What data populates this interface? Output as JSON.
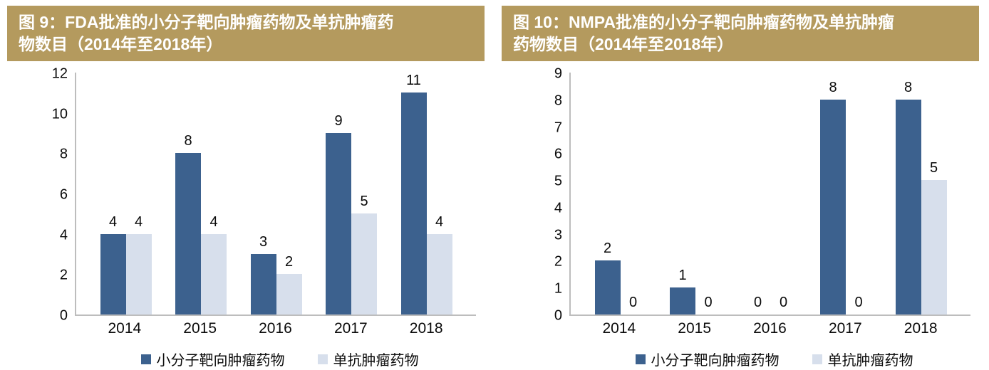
{
  "colors": {
    "header_bg": "#b49a5e",
    "header_text": "#ffffff",
    "axis": "#bdbdbd",
    "label_text": "#0a0a0a",
    "series_dark": "#3c618e",
    "series_light": "#d7dfec"
  },
  "chart_data": [
    {
      "type": "bar",
      "title": "图 9：FDA批准的小分子靶向肿瘤药物及单抗肿瘤药物数目（2014年至2018年）",
      "title_lines": [
        "图 9：FDA批准的小分子靶向肿瘤药物及单抗肿瘤药",
        "物数目（2014年至2018年）"
      ],
      "categories": [
        "2014",
        "2015",
        "2016",
        "2017",
        "2018"
      ],
      "series": [
        {
          "name": "小分子靶向肿瘤药物",
          "color": "#3c618e",
          "values": [
            4,
            8,
            3,
            9,
            11
          ]
        },
        {
          "name": "单抗肿瘤药物",
          "color": "#d7dfec",
          "values": [
            4,
            4,
            2,
            5,
            4
          ]
        }
      ],
      "ylim": [
        0,
        12
      ],
      "ytick_step": 2,
      "grid": false,
      "data_labels": true,
      "legend_position": "bottom"
    },
    {
      "type": "bar",
      "title": "图 10：NMPA批准的小分子靶向肿瘤药物及单抗肿瘤药物数目（2014年至2018年）",
      "title_lines": [
        "图 10：NMPA批准的小分子靶向肿瘤药物及单抗肿瘤",
        "药物数目（2014年至2018年）"
      ],
      "categories": [
        "2014",
        "2015",
        "2016",
        "2017",
        "2018"
      ],
      "series": [
        {
          "name": "小分子靶向肿瘤药物",
          "color": "#3c618e",
          "values": [
            2,
            1,
            0,
            8,
            8
          ]
        },
        {
          "name": "单抗肿瘤药物",
          "color": "#d7dfec",
          "values": [
            0,
            0,
            0,
            0,
            5
          ]
        }
      ],
      "ylim": [
        0,
        9
      ],
      "ytick_step": 1,
      "grid": false,
      "data_labels": true,
      "legend_position": "bottom"
    }
  ]
}
